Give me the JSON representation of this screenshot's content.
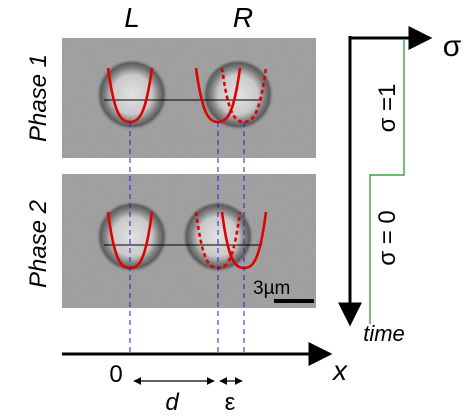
{
  "trap_labels": {
    "left": "L",
    "right": "R"
  },
  "phases": [
    {
      "label": "Phase 1"
    },
    {
      "label": "Phase 2"
    }
  ],
  "scale_bar": {
    "label": "3µm"
  },
  "x_axis": {
    "label": "x",
    "origin_label": "0",
    "distance_label": "d",
    "offset_label": "ε"
  },
  "time_plot": {
    "sigma_axis_label": "σ",
    "time_axis_label": "time",
    "state_upper_label": "σ =1",
    "state_lower_label": "σ = 0"
  },
  "colors": {
    "potential": "#e00000",
    "guide": "#2020c8",
    "protocol": "#3aa63a",
    "axis": "#000000"
  }
}
